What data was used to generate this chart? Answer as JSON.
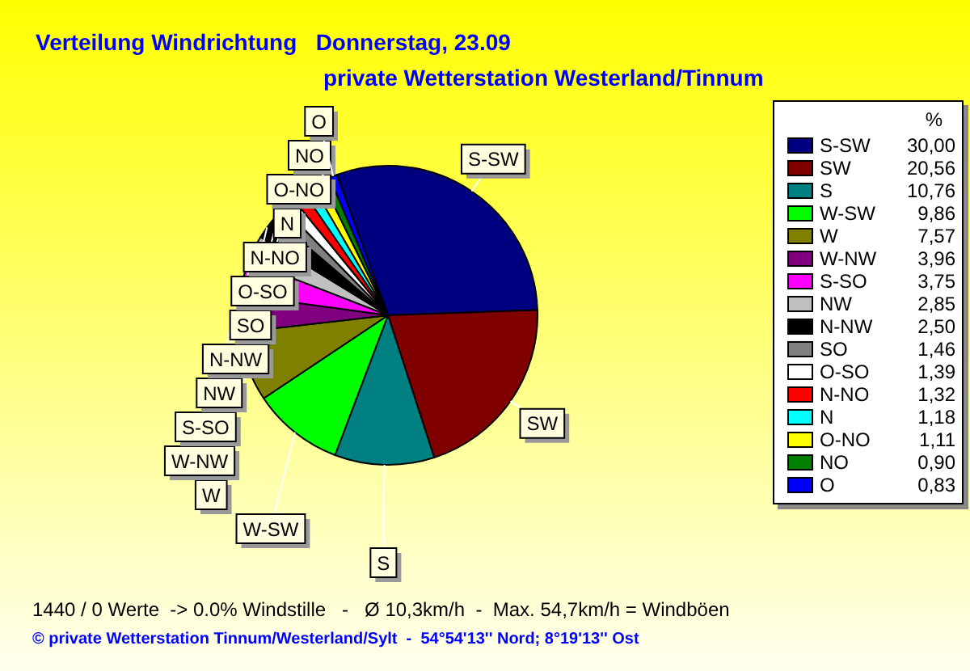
{
  "chart_data": {
    "type": "pie",
    "title": "Verteilung Windrichtung   Donnerstag, 23.09",
    "subtitle": "private Wetterstation Westerland/Tinnum",
    "legend_title": "%",
    "legend": "right",
    "data_labels": true,
    "categories": [
      "S-SW",
      "SW",
      "S",
      "W-SW",
      "W",
      "W-NW",
      "S-SO",
      "NW",
      "N-NW",
      "SO",
      "O-SO",
      "N-NO",
      "N",
      "O-NO",
      "NO",
      "O"
    ],
    "values": [
      30.0,
      20.56,
      10.76,
      9.86,
      7.57,
      3.96,
      3.75,
      2.85,
      2.5,
      1.46,
      1.39,
      1.32,
      1.18,
      1.11,
      0.9,
      0.83
    ],
    "value_labels": [
      "30,00",
      "20,56",
      "10,76",
      "9,86",
      "7,57",
      "3,96",
      "3,75",
      "2,85",
      "2,50",
      "1,46",
      "1,39",
      "1,32",
      "1,18",
      "1,11",
      "0,90",
      "0,83"
    ],
    "colors": [
      "#000080",
      "#800000",
      "#008080",
      "#00ff00",
      "#808000",
      "#800080",
      "#ff00ff",
      "#c0c0c0",
      "#000000",
      "#808080",
      "#ffffff",
      "#ff0000",
      "#00ffff",
      "#ffff00",
      "#008000",
      "#0000ff"
    ],
    "annotations": [
      "1440 / 0 Werte  -> 0.0% Windstille   -   Ø 10,3km/h  -  Max. 54,7km/h = Windböen",
      "© private Wetterstation Tinnum/Westerland/Sylt  -  54°54'13'' Nord; 8°19'13'' Ost"
    ]
  }
}
